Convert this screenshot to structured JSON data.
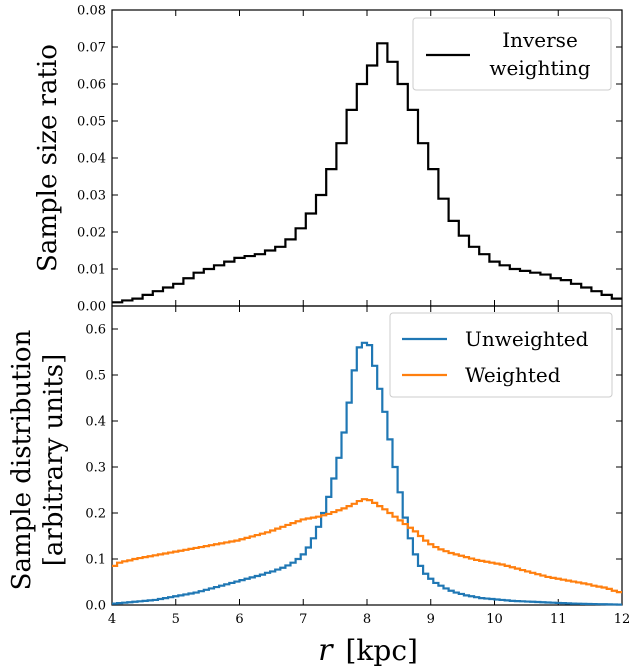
{
  "figure": {
    "xlabel_var": "r",
    "xlabel_unit": "[kpc]"
  },
  "chart_data": [
    {
      "type": "line",
      "panel": "top",
      "step": true,
      "ylabel": "Sample size ratio",
      "xlim": [
        4,
        12
      ],
      "ylim": [
        0,
        0.08
      ],
      "xticks": [
        4,
        5,
        6,
        7,
        8,
        9,
        10,
        11,
        12
      ],
      "yticks": [
        0.0,
        0.01,
        0.02,
        0.03,
        0.04,
        0.05,
        0.06,
        0.07,
        0.08
      ],
      "ytick_labels": [
        "0.00",
        "0.01",
        "0.02",
        "0.03",
        "0.04",
        "0.05",
        "0.06",
        "0.07",
        "0.08"
      ],
      "bin_edges": [
        4.0,
        4.16,
        4.32,
        4.48,
        4.64,
        4.8,
        4.96,
        5.12,
        5.28,
        5.44,
        5.6,
        5.76,
        5.92,
        6.08,
        6.24,
        6.4,
        6.56,
        6.72,
        6.88,
        7.04,
        7.2,
        7.36,
        7.52,
        7.68,
        7.84,
        8.0,
        8.16,
        8.32,
        8.48,
        8.64,
        8.8,
        8.96,
        9.12,
        9.28,
        9.44,
        9.6,
        9.76,
        9.92,
        10.08,
        10.24,
        10.4,
        10.56,
        10.72,
        10.88,
        11.04,
        11.2,
        11.36,
        11.52,
        11.68,
        11.84,
        12.0
      ],
      "legend_position": "top-right",
      "series": [
        {
          "name_lines": [
            "Inverse",
            "weighting"
          ],
          "color": "#000000",
          "values": [
            0.001,
            0.0015,
            0.002,
            0.003,
            0.004,
            0.005,
            0.006,
            0.0075,
            0.009,
            0.01,
            0.011,
            0.012,
            0.013,
            0.0135,
            0.014,
            0.015,
            0.016,
            0.018,
            0.021,
            0.025,
            0.03,
            0.037,
            0.044,
            0.053,
            0.06,
            0.065,
            0.071,
            0.066,
            0.06,
            0.053,
            0.044,
            0.037,
            0.029,
            0.023,
            0.019,
            0.016,
            0.014,
            0.012,
            0.011,
            0.01,
            0.0095,
            0.009,
            0.0085,
            0.0075,
            0.007,
            0.006,
            0.005,
            0.004,
            0.003,
            0.002
          ]
        }
      ]
    },
    {
      "type": "line",
      "panel": "bottom",
      "step": true,
      "ylabel_lines": [
        "Sample distribution",
        "[arbitrary units]"
      ],
      "xlim": [
        4,
        12
      ],
      "ylim": [
        0,
        0.65
      ],
      "xticks": [
        4,
        5,
        6,
        7,
        8,
        9,
        10,
        11,
        12
      ],
      "yticks": [
        0.0,
        0.1,
        0.2,
        0.3,
        0.4,
        0.5,
        0.6
      ],
      "ytick_labels": [
        "0.0",
        "0.1",
        "0.2",
        "0.3",
        "0.4",
        "0.5",
        "0.6"
      ],
      "bin_edges": [
        4.0,
        4.08,
        4.16,
        4.24,
        4.32,
        4.4,
        4.48,
        4.56,
        4.64,
        4.72,
        4.8,
        4.88,
        4.96,
        5.04,
        5.12,
        5.2,
        5.28,
        5.36,
        5.44,
        5.52,
        5.6,
        5.68,
        5.76,
        5.84,
        5.92,
        6.0,
        6.08,
        6.16,
        6.24,
        6.32,
        6.4,
        6.48,
        6.56,
        6.64,
        6.72,
        6.8,
        6.88,
        6.96,
        7.04,
        7.12,
        7.2,
        7.28,
        7.36,
        7.44,
        7.52,
        7.6,
        7.68,
        7.76,
        7.84,
        7.92,
        8.0,
        8.08,
        8.16,
        8.24,
        8.32,
        8.4,
        8.48,
        8.56,
        8.64,
        8.72,
        8.8,
        8.88,
        8.96,
        9.04,
        9.12,
        9.2,
        9.28,
        9.36,
        9.44,
        9.52,
        9.6,
        9.68,
        9.76,
        9.84,
        9.92,
        10.0,
        10.08,
        10.16,
        10.24,
        10.32,
        10.4,
        10.48,
        10.56,
        10.64,
        10.72,
        10.8,
        10.88,
        10.96,
        11.04,
        11.12,
        11.2,
        11.28,
        11.36,
        11.44,
        11.52,
        11.6,
        11.68,
        11.76,
        11.84,
        11.92,
        12.0
      ],
      "legend_position": "top-right",
      "series": [
        {
          "name": "Unweighted",
          "color": "#1f77b4",
          "values": [
            0.003,
            0.004,
            0.005,
            0.006,
            0.007,
            0.008,
            0.009,
            0.01,
            0.011,
            0.013,
            0.015,
            0.017,
            0.019,
            0.021,
            0.023,
            0.025,
            0.027,
            0.03,
            0.033,
            0.036,
            0.039,
            0.042,
            0.045,
            0.048,
            0.051,
            0.054,
            0.057,
            0.06,
            0.063,
            0.066,
            0.07,
            0.073,
            0.077,
            0.081,
            0.086,
            0.092,
            0.1,
            0.11,
            0.125,
            0.145,
            0.17,
            0.2,
            0.235,
            0.275,
            0.32,
            0.375,
            0.44,
            0.51,
            0.56,
            0.57,
            0.565,
            0.52,
            0.47,
            0.42,
            0.36,
            0.3,
            0.245,
            0.19,
            0.145,
            0.11,
            0.085,
            0.068,
            0.057,
            0.048,
            0.042,
            0.036,
            0.031,
            0.027,
            0.024,
            0.021,
            0.019,
            0.017,
            0.015,
            0.014,
            0.013,
            0.012,
            0.011,
            0.01,
            0.009,
            0.0085,
            0.008,
            0.0075,
            0.007,
            0.0065,
            0.006,
            0.0055,
            0.005,
            0.0045,
            0.004,
            0.0035,
            0.003,
            0.0028,
            0.0025,
            0.0022,
            0.002,
            0.0018,
            0.0016,
            0.0014,
            0.0012,
            0.001
          ]
        },
        {
          "name": "Weighted",
          "color": "#ff7f0e",
          "values": [
            0.085,
            0.092,
            0.095,
            0.097,
            0.1,
            0.102,
            0.104,
            0.106,
            0.108,
            0.11,
            0.112,
            0.114,
            0.116,
            0.118,
            0.12,
            0.122,
            0.124,
            0.126,
            0.128,
            0.13,
            0.132,
            0.134,
            0.136,
            0.138,
            0.14,
            0.143,
            0.146,
            0.149,
            0.152,
            0.155,
            0.158,
            0.162,
            0.166,
            0.17,
            0.174,
            0.178,
            0.182,
            0.186,
            0.188,
            0.19,
            0.192,
            0.195,
            0.198,
            0.202,
            0.206,
            0.21,
            0.215,
            0.22,
            0.226,
            0.23,
            0.228,
            0.222,
            0.215,
            0.208,
            0.2,
            0.192,
            0.184,
            0.176,
            0.168,
            0.16,
            0.15,
            0.14,
            0.132,
            0.126,
            0.121,
            0.117,
            0.113,
            0.11,
            0.107,
            0.104,
            0.101,
            0.098,
            0.096,
            0.094,
            0.092,
            0.09,
            0.088,
            0.085,
            0.082,
            0.079,
            0.076,
            0.073,
            0.07,
            0.067,
            0.064,
            0.061,
            0.059,
            0.057,
            0.055,
            0.053,
            0.051,
            0.049,
            0.047,
            0.045,
            0.042,
            0.04,
            0.038,
            0.035,
            0.031,
            0.028
          ]
        }
      ]
    }
  ]
}
